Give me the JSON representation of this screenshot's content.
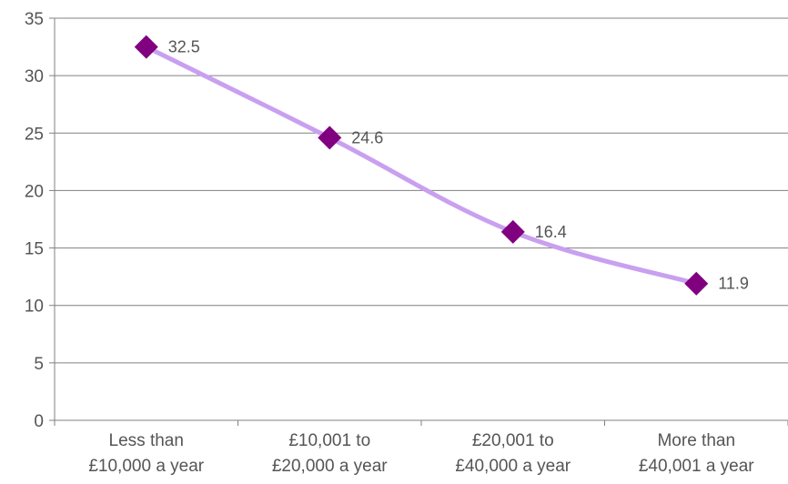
{
  "chart_data": {
    "type": "line",
    "title": "",
    "xlabel": "",
    "ylabel": "",
    "categories": [
      [
        "Less than",
        "£10,000 a year"
      ],
      [
        "£10,001 to",
        "£20,000 a year"
      ],
      [
        "£20,001 to",
        "£40,000 a year"
      ],
      [
        "More than",
        "£40,001 a year"
      ]
    ],
    "series": [
      {
        "values": [
          32.5,
          24.6,
          16.4,
          11.9
        ],
        "data_labels": [
          "32.5",
          "24.6",
          "16.4",
          "11.9"
        ]
      }
    ],
    "ylim": [
      0,
      35
    ],
    "yticks": [
      "0",
      "5",
      "10",
      "15",
      "20",
      "25",
      "30",
      "35"
    ],
    "grid": "horizontal",
    "legend": "none",
    "colors": {
      "line": "#c9a0f0",
      "marker": "#800080",
      "grid": "#808080",
      "axis": "#808080"
    }
  }
}
